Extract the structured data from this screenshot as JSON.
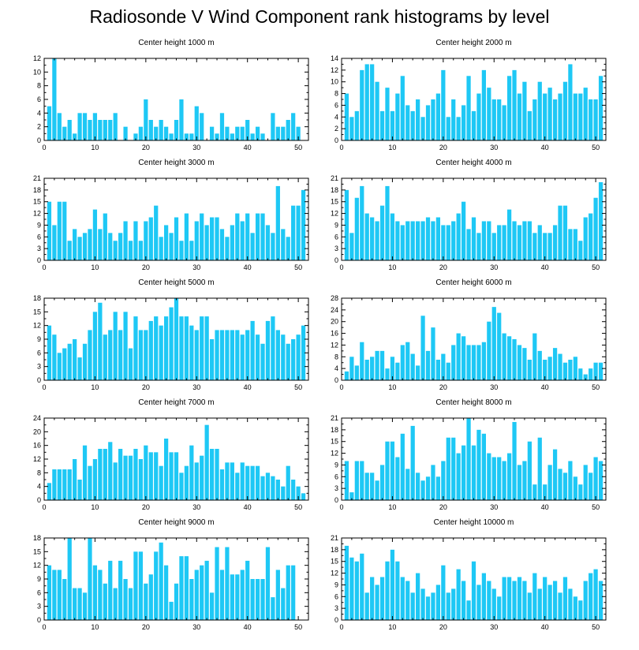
{
  "title": "Radiosonde V Wind Component rank histograms by level",
  "bar_color": "#1ec8f5",
  "chart_data": [
    {
      "type": "bar",
      "title": "Center height 1000 m",
      "xlim": [
        0,
        52
      ],
      "xticks": [
        0,
        10,
        20,
        30,
        40,
        50
      ],
      "ylim": [
        0,
        12
      ],
      "yticks": [
        0,
        2,
        4,
        6,
        8,
        10,
        12
      ],
      "x": [
        1,
        2,
        3,
        4,
        5,
        6,
        7,
        8,
        9,
        10,
        11,
        12,
        13,
        14,
        15,
        16,
        17,
        18,
        19,
        20,
        21,
        22,
        23,
        24,
        25,
        26,
        27,
        28,
        29,
        30,
        31,
        32,
        33,
        34,
        35,
        36,
        37,
        38,
        39,
        40,
        41,
        42,
        43,
        44,
        45,
        46,
        47,
        48,
        49,
        50,
        51
      ],
      "values": [
        5,
        12,
        4,
        2,
        3,
        1,
        4,
        4,
        3,
        4,
        3,
        3,
        3,
        4,
        0,
        2,
        0,
        1,
        2,
        6,
        3,
        2,
        3,
        2,
        1,
        3,
        6,
        1,
        1,
        5,
        4,
        0,
        2,
        1,
        4,
        2,
        1,
        2,
        2,
        3,
        1,
        2,
        1,
        0,
        4,
        2,
        2,
        3,
        4,
        2,
        0
      ]
    },
    {
      "type": "bar",
      "title": "Center height 2000 m",
      "xlim": [
        0,
        52
      ],
      "xticks": [
        0,
        10,
        20,
        30,
        40,
        50
      ],
      "ylim": [
        0,
        14
      ],
      "yticks": [
        0,
        2,
        4,
        6,
        8,
        10,
        12,
        14
      ],
      "x": [
        1,
        2,
        3,
        4,
        5,
        6,
        7,
        8,
        9,
        10,
        11,
        12,
        13,
        14,
        15,
        16,
        17,
        18,
        19,
        20,
        21,
        22,
        23,
        24,
        25,
        26,
        27,
        28,
        29,
        30,
        31,
        32,
        33,
        34,
        35,
        36,
        37,
        38,
        39,
        40,
        41,
        42,
        43,
        44,
        45,
        46,
        47,
        48,
        49,
        50,
        51
      ],
      "values": [
        8,
        4,
        5,
        12,
        13,
        13,
        10,
        5,
        9,
        5,
        8,
        11,
        6,
        5,
        7,
        4,
        6,
        7,
        8,
        12,
        4,
        7,
        4,
        6,
        11,
        5,
        8,
        12,
        9,
        7,
        7,
        6,
        11,
        12,
        8,
        10,
        5,
        7,
        10,
        8,
        9,
        7,
        8,
        10,
        13,
        8,
        8,
        9,
        7,
        7,
        11
      ]
    },
    {
      "type": "bar",
      "title": "Center height 3000 m",
      "xlim": [
        0,
        52
      ],
      "xticks": [
        0,
        10,
        20,
        30,
        40,
        50
      ],
      "ylim": [
        0,
        21
      ],
      "yticks": [
        0,
        3,
        6,
        9,
        12,
        15,
        18,
        21
      ],
      "x": [
        1,
        2,
        3,
        4,
        5,
        6,
        7,
        8,
        9,
        10,
        11,
        12,
        13,
        14,
        15,
        16,
        17,
        18,
        19,
        20,
        21,
        22,
        23,
        24,
        25,
        26,
        27,
        28,
        29,
        30,
        31,
        32,
        33,
        34,
        35,
        36,
        37,
        38,
        39,
        40,
        41,
        42,
        43,
        44,
        45,
        46,
        47,
        48,
        49,
        50,
        51
      ],
      "values": [
        15,
        9,
        15,
        15,
        5,
        8,
        6,
        7,
        8,
        13,
        8,
        12,
        7,
        5,
        7,
        10,
        5,
        10,
        5,
        10,
        11,
        14,
        6,
        9,
        7,
        11,
        5,
        12,
        5,
        10,
        12,
        9,
        11,
        11,
        8,
        6,
        9,
        12,
        10,
        12,
        7,
        12,
        12,
        9,
        7,
        19,
        8,
        6,
        14,
        14,
        18
      ]
    },
    {
      "type": "bar",
      "title": "Center height 4000 m",
      "xlim": [
        0,
        52
      ],
      "xticks": [
        0,
        10,
        20,
        30,
        40,
        50
      ],
      "ylim": [
        0,
        21
      ],
      "yticks": [
        0,
        3,
        6,
        9,
        12,
        15,
        18,
        21
      ],
      "x": [
        1,
        2,
        3,
        4,
        5,
        6,
        7,
        8,
        9,
        10,
        11,
        12,
        13,
        14,
        15,
        16,
        17,
        18,
        19,
        20,
        21,
        22,
        23,
        24,
        25,
        26,
        27,
        28,
        29,
        30,
        31,
        32,
        33,
        34,
        35,
        36,
        37,
        38,
        39,
        40,
        41,
        42,
        43,
        44,
        45,
        46,
        47,
        48,
        49,
        50,
        51
      ],
      "values": [
        18,
        7,
        16,
        19,
        12,
        11,
        10,
        14,
        19,
        12,
        10,
        9,
        10,
        10,
        10,
        10,
        11,
        10,
        11,
        9,
        9,
        10,
        12,
        15,
        8,
        11,
        7,
        10,
        10,
        7,
        9,
        9,
        13,
        10,
        9,
        10,
        10,
        7,
        9,
        7,
        7,
        9,
        14,
        14,
        8,
        8,
        5,
        11,
        12,
        16,
        20
      ]
    },
    {
      "type": "bar",
      "title": "Center height 5000 m",
      "xlim": [
        0,
        52
      ],
      "xticks": [
        0,
        10,
        20,
        30,
        40,
        50
      ],
      "ylim": [
        0,
        18
      ],
      "yticks": [
        0,
        3,
        6,
        9,
        12,
        15,
        18
      ],
      "x": [
        1,
        2,
        3,
        4,
        5,
        6,
        7,
        8,
        9,
        10,
        11,
        12,
        13,
        14,
        15,
        16,
        17,
        18,
        19,
        20,
        21,
        22,
        23,
        24,
        25,
        26,
        27,
        28,
        29,
        30,
        31,
        32,
        33,
        34,
        35,
        36,
        37,
        38,
        39,
        40,
        41,
        42,
        43,
        44,
        45,
        46,
        47,
        48,
        49,
        50,
        51
      ],
      "values": [
        12,
        10,
        6,
        7,
        8,
        9,
        5,
        8,
        11,
        15,
        17,
        10,
        11,
        15,
        11,
        15,
        7,
        14,
        11,
        11,
        13,
        14,
        12,
        14,
        16,
        18,
        14,
        14,
        12,
        11,
        14,
        14,
        9,
        11,
        11,
        11,
        11,
        11,
        10,
        11,
        13,
        10,
        8,
        13,
        14,
        11,
        10,
        8,
        9,
        10,
        12
      ]
    },
    {
      "type": "bar",
      "title": "Center height 6000 m",
      "xlim": [
        0,
        52
      ],
      "xticks": [
        0,
        10,
        20,
        30,
        40,
        50
      ],
      "ylim": [
        0,
        28
      ],
      "yticks": [
        0,
        4,
        8,
        12,
        16,
        20,
        24,
        28
      ],
      "x": [
        1,
        2,
        3,
        4,
        5,
        6,
        7,
        8,
        9,
        10,
        11,
        12,
        13,
        14,
        15,
        16,
        17,
        18,
        19,
        20,
        21,
        22,
        23,
        24,
        25,
        26,
        27,
        28,
        29,
        30,
        31,
        32,
        33,
        34,
        35,
        36,
        37,
        38,
        39,
        40,
        41,
        42,
        43,
        44,
        45,
        46,
        47,
        48,
        49,
        50,
        51
      ],
      "values": [
        3,
        8,
        5,
        13,
        7,
        8,
        10,
        10,
        4,
        8,
        6,
        12,
        13,
        9,
        5,
        22,
        10,
        18,
        7,
        9,
        6,
        12,
        16,
        15,
        12,
        12,
        12,
        13,
        20,
        25,
        23,
        16,
        15,
        14,
        12,
        11,
        7,
        16,
        10,
        7,
        8,
        11,
        9,
        6,
        7,
        8,
        4,
        2,
        4,
        6,
        6
      ]
    },
    {
      "type": "bar",
      "title": "Center height 7000 m",
      "xlim": [
        0,
        52
      ],
      "xticks": [
        0,
        10,
        20,
        30,
        40,
        50
      ],
      "ylim": [
        0,
        24
      ],
      "yticks": [
        0,
        4,
        8,
        12,
        16,
        20,
        24
      ],
      "x": [
        1,
        2,
        3,
        4,
        5,
        6,
        7,
        8,
        9,
        10,
        11,
        12,
        13,
        14,
        15,
        16,
        17,
        18,
        19,
        20,
        21,
        22,
        23,
        24,
        25,
        26,
        27,
        28,
        29,
        30,
        31,
        32,
        33,
        34,
        35,
        36,
        37,
        38,
        39,
        40,
        41,
        42,
        43,
        44,
        45,
        46,
        47,
        48,
        49,
        50,
        51
      ],
      "values": [
        5,
        9,
        9,
        9,
        9,
        12,
        6,
        16,
        10,
        12,
        15,
        15,
        17,
        11,
        15,
        13,
        13,
        15,
        12,
        16,
        14,
        14,
        10,
        18,
        14,
        14,
        8,
        10,
        16,
        11,
        13,
        22,
        15,
        15,
        9,
        11,
        11,
        8,
        11,
        10,
        10,
        10,
        7,
        8,
        7,
        6,
        4,
        10,
        6,
        4,
        2
      ]
    },
    {
      "type": "bar",
      "title": "Center height 8000 m",
      "xlim": [
        0,
        52
      ],
      "xticks": [
        0,
        10,
        20,
        30,
        40,
        50
      ],
      "ylim": [
        0,
        21
      ],
      "yticks": [
        0,
        3,
        6,
        9,
        12,
        15,
        18,
        21
      ],
      "x": [
        1,
        2,
        3,
        4,
        5,
        6,
        7,
        8,
        9,
        10,
        11,
        12,
        13,
        14,
        15,
        16,
        17,
        18,
        19,
        20,
        21,
        22,
        23,
        24,
        25,
        26,
        27,
        28,
        29,
        30,
        31,
        32,
        33,
        34,
        35,
        36,
        37,
        38,
        39,
        40,
        41,
        42,
        43,
        44,
        45,
        46,
        47,
        48,
        49,
        50,
        51
      ],
      "values": [
        10,
        2,
        10,
        10,
        7,
        7,
        5,
        9,
        15,
        15,
        11,
        17,
        8,
        19,
        7,
        5,
        6,
        9,
        6,
        10,
        16,
        16,
        12,
        14,
        21,
        14,
        18,
        17,
        12,
        11,
        11,
        10,
        12,
        20,
        9,
        10,
        15,
        4,
        16,
        4,
        9,
        13,
        8,
        7,
        10,
        6,
        4,
        9,
        7,
        11,
        10
      ]
    },
    {
      "type": "bar",
      "title": "Center height 9000 m",
      "xlim": [
        0,
        52
      ],
      "xticks": [
        0,
        10,
        20,
        30,
        40,
        50
      ],
      "ylim": [
        0,
        18
      ],
      "yticks": [
        0,
        3,
        6,
        9,
        12,
        15,
        18
      ],
      "x": [
        1,
        2,
        3,
        4,
        5,
        6,
        7,
        8,
        9,
        10,
        11,
        12,
        13,
        14,
        15,
        16,
        17,
        18,
        19,
        20,
        21,
        22,
        23,
        24,
        25,
        26,
        27,
        28,
        29,
        30,
        31,
        32,
        33,
        34,
        35,
        36,
        37,
        38,
        39,
        40,
        41,
        42,
        43,
        44,
        45,
        46,
        47,
        48,
        49,
        50,
        51
      ],
      "values": [
        12,
        11,
        11,
        9,
        18,
        7,
        7,
        6,
        18,
        12,
        11,
        8,
        13,
        7,
        13,
        9,
        7,
        15,
        15,
        8,
        10,
        15,
        17,
        12,
        4,
        8,
        14,
        14,
        9,
        11,
        12,
        13,
        6,
        16,
        11,
        16,
        10,
        10,
        11,
        13,
        9,
        9,
        9,
        16,
        5,
        11,
        7,
        12,
        12,
        0,
        0
      ]
    },
    {
      "type": "bar",
      "title": "Center height 10000 m",
      "xlim": [
        0,
        52
      ],
      "xticks": [
        0,
        10,
        20,
        30,
        40,
        50
      ],
      "ylim": [
        0,
        21
      ],
      "yticks": [
        0,
        3,
        6,
        9,
        12,
        15,
        18,
        21
      ],
      "x": [
        1,
        2,
        3,
        4,
        5,
        6,
        7,
        8,
        9,
        10,
        11,
        12,
        13,
        14,
        15,
        16,
        17,
        18,
        19,
        20,
        21,
        22,
        23,
        24,
        25,
        26,
        27,
        28,
        29,
        30,
        31,
        32,
        33,
        34,
        35,
        36,
        37,
        38,
        39,
        40,
        41,
        42,
        43,
        44,
        45,
        46,
        47,
        48,
        49,
        50,
        51
      ],
      "values": [
        19,
        16,
        15,
        17,
        7,
        11,
        9,
        11,
        15,
        18,
        15,
        11,
        10,
        7,
        12,
        8,
        6,
        7,
        9,
        14,
        7,
        8,
        13,
        10,
        5,
        15,
        9,
        12,
        10,
        8,
        6,
        11,
        11,
        10,
        11,
        10,
        7,
        12,
        8,
        11,
        9,
        10,
        7,
        11,
        8,
        6,
        5,
        10,
        12,
        13,
        10
      ]
    }
  ]
}
